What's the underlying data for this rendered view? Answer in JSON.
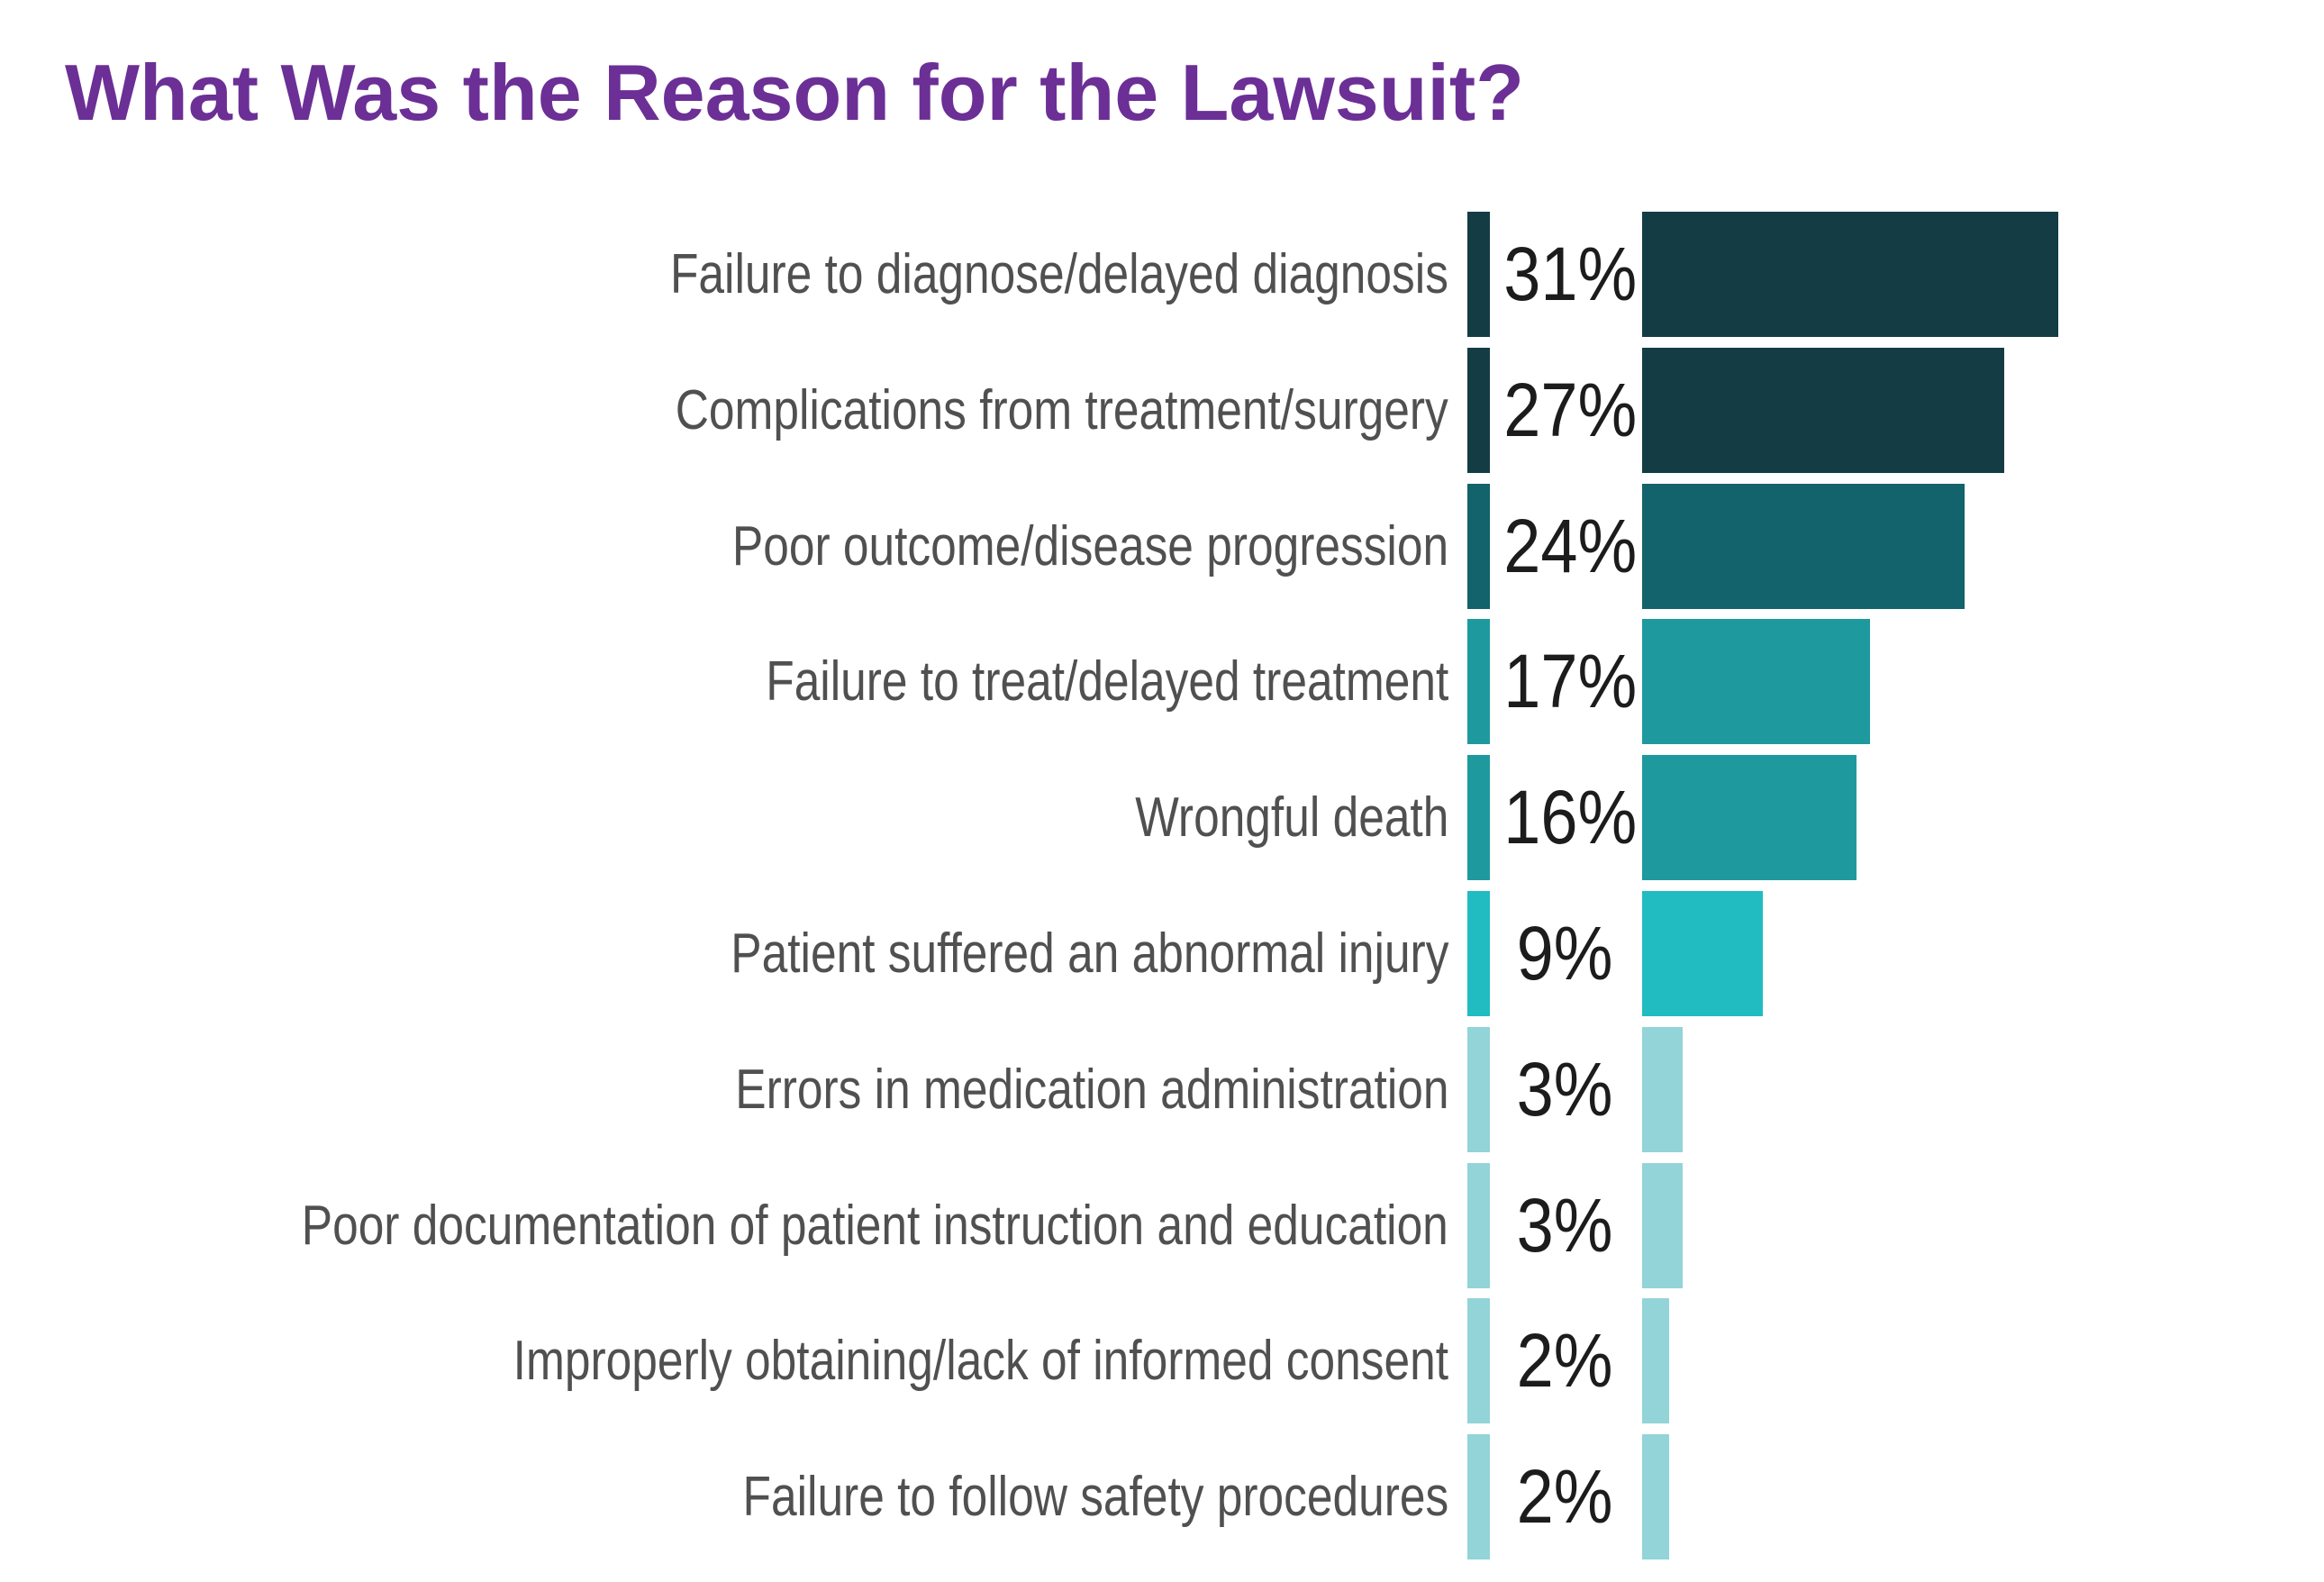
{
  "chart_data": {
    "type": "bar",
    "orientation": "horizontal",
    "title": "What Was the Reason for the Lawsuit?",
    "categories": [
      "Failure to diagnose/delayed diagnosis",
      "Complications from treatment/surgery",
      "Poor outcome/disease progression",
      "Failure to treat/delayed treatment",
      "Wrongful death",
      "Patient suffered an abnormal injury",
      "Errors in medication administration",
      "Poor documentation of patient instruction and education",
      "Improperly obtaining/lack of informed consent",
      "Failure to follow safety procedures"
    ],
    "values": [
      31,
      27,
      24,
      17,
      16,
      9,
      3,
      3,
      2,
      2
    ],
    "data_labels": [
      "31%",
      "27%",
      "24%",
      "17%",
      "16%",
      "9%",
      "3%",
      "3%",
      "2%",
      "2%"
    ],
    "unit": "%",
    "colors": [
      "#143c44",
      "#143c44",
      "#12636b",
      "#1e9a9f",
      "#1e9a9f",
      "#20bcc2",
      "#92d4d8",
      "#92d4d8",
      "#92d4d8",
      "#92d4d8"
    ],
    "title_color": "#6b2f96",
    "grid": false,
    "legend": "none"
  }
}
